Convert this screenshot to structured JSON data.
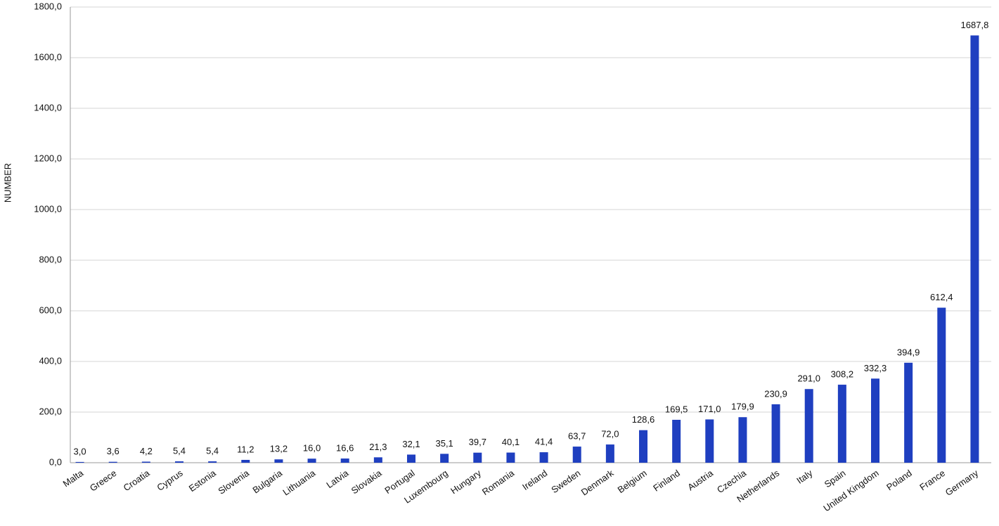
{
  "chart_data": {
    "type": "bar",
    "y_label": "NUMBER",
    "categories": [
      "Malta",
      "Greece",
      "Croatia",
      "Cyprus",
      "Estonia",
      "Slovenia",
      "Bulgaria",
      "Lithuania",
      "Latvia",
      "Slovakia",
      "Portugal",
      "Luxembourg",
      "Hungary",
      "Romania",
      "Ireland",
      "Sweden",
      "Denmark",
      "Belgium",
      "Finland",
      "Austria",
      "Czechia",
      "Netherlands",
      "Italy",
      "Spain",
      "United Kingdom",
      "Poland",
      "France",
      "Germany"
    ],
    "values": [
      3.0,
      3.6,
      4.2,
      5.4,
      5.4,
      11.2,
      13.2,
      16.0,
      16.6,
      21.3,
      32.1,
      35.1,
      39.7,
      40.1,
      41.4,
      63.7,
      72.0,
      128.6,
      169.5,
      171.0,
      179.9,
      230.9,
      291.0,
      308.2,
      332.3,
      394.9,
      612.4,
      1687.8
    ],
    "value_labels": [
      "3,0",
      "3,6",
      "4,2",
      "5,4",
      "5,4",
      "11,2",
      "13,2",
      "16,0",
      "16,6",
      "21,3",
      "32,1",
      "35,1",
      "39,7",
      "40,1",
      "41,4",
      "63,7",
      "72,0",
      "128,6",
      "169,5",
      "171,0",
      "179,9",
      "230,9",
      "291,0",
      "308,2",
      "332,3",
      "394,9",
      "612,4",
      "1687,8"
    ],
    "color": "#1f3fc0",
    "ylim": [
      0,
      1800
    ],
    "yticks": [
      {
        "value": 0,
        "label": "0,0"
      },
      {
        "value": 200,
        "label": "200,0"
      },
      {
        "value": 400,
        "label": "400,0"
      },
      {
        "value": 600,
        "label": "600,0"
      },
      {
        "value": 800,
        "label": "800,0"
      },
      {
        "value": 1000,
        "label": "1000,0"
      },
      {
        "value": 1200,
        "label": "1200,0"
      },
      {
        "value": 1400,
        "label": "1400,0"
      },
      {
        "value": 1600,
        "label": "1600,0"
      },
      {
        "value": 1800,
        "label": "1800,0"
      }
    ],
    "grid": true
  }
}
